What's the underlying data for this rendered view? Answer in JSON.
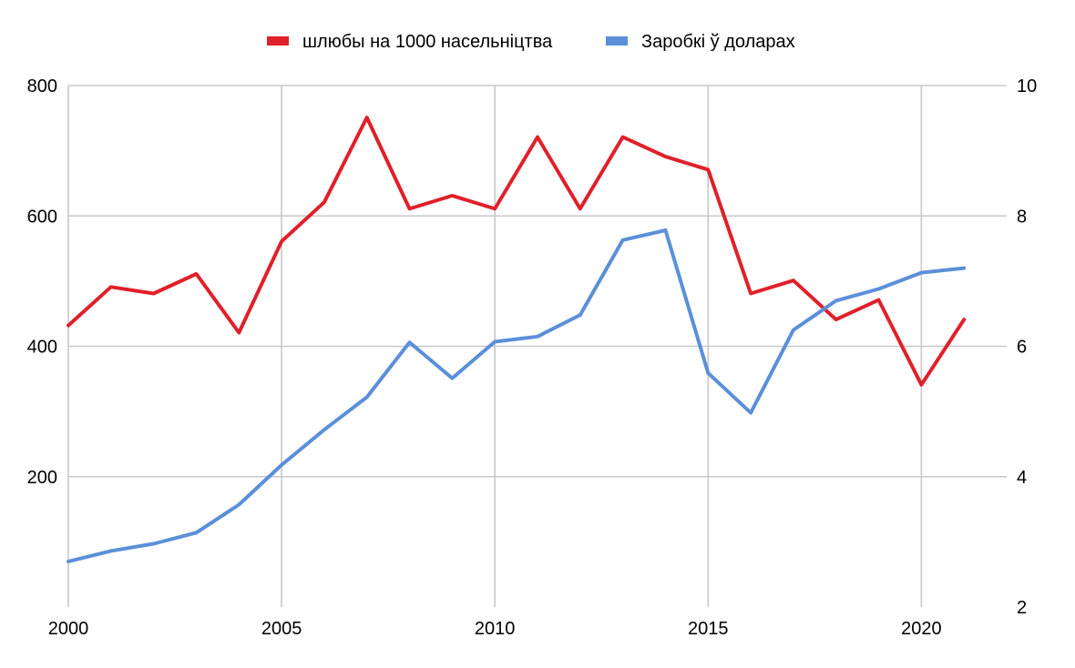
{
  "chart_data": {
    "type": "line",
    "x": [
      2000,
      2001,
      2002,
      2003,
      2004,
      2005,
      2006,
      2007,
      2008,
      2009,
      2010,
      2011,
      2012,
      2013,
      2014,
      2015,
      2016,
      2017,
      2018,
      2019,
      2020,
      2021
    ],
    "x_ticks": [
      2000,
      2005,
      2010,
      2015,
      2020
    ],
    "xlim": [
      2000,
      2022
    ],
    "y_left_ticks": [
      200,
      400,
      600,
      800
    ],
    "ylim_left": [
      0,
      800
    ],
    "y_right_ticks": [
      2,
      4,
      6,
      8,
      10
    ],
    "ylim_right": [
      2,
      10
    ],
    "grid": true,
    "legend_position": "top",
    "series": [
      {
        "name": "шлюбы на 1000 насельніцтва",
        "color": "#e0202a",
        "axis": "left",
        "values": [
          432,
          491,
          481,
          511,
          421,
          561,
          621,
          751,
          611,
          631,
          611,
          721,
          611,
          721,
          691,
          671,
          481,
          501,
          441,
          471,
          341,
          441
        ]
      },
      {
        "name": "Заробкі ў доларах",
        "color": "#5b8fd9",
        "axis": "right",
        "values": [
          2.7,
          2.86,
          2.97,
          3.14,
          3.57,
          4.18,
          4.72,
          5.22,
          6.06,
          5.51,
          6.07,
          6.15,
          6.48,
          7.63,
          7.78,
          5.59,
          4.98,
          6.25,
          6.7,
          6.88,
          7.13,
          7.2
        ]
      }
    ]
  }
}
